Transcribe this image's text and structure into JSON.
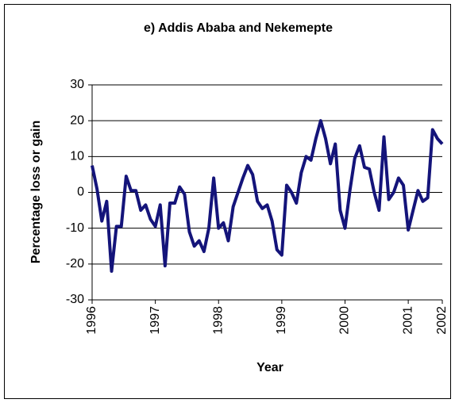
{
  "chart_data": {
    "type": "line",
    "title": "e) Addis Ababa and Nekemepte",
    "x_label": "Year",
    "y_label": "Percentage loss or gain",
    "categories": [
      "1996",
      null,
      null,
      null,
      null,
      null,
      null,
      null,
      null,
      null,
      null,
      null,
      null,
      "1997",
      null,
      null,
      null,
      null,
      null,
      null,
      null,
      null,
      null,
      null,
      null,
      null,
      "1998",
      null,
      null,
      null,
      null,
      null,
      null,
      null,
      null,
      null,
      null,
      null,
      null,
      "1999",
      null,
      null,
      null,
      null,
      null,
      null,
      null,
      null,
      null,
      null,
      null,
      null,
      "2000",
      null,
      null,
      null,
      null,
      null,
      null,
      null,
      null,
      null,
      null,
      null,
      null,
      "2001",
      null,
      null,
      null,
      null,
      null,
      null,
      "2002"
    ],
    "series": [
      {
        "color": "#14147a",
        "values": [
          7.5,
          1,
          -8,
          -2.5,
          -22,
          -9.5,
          -9.5,
          4.5,
          0.5,
          0.5,
          -5,
          -3.5,
          -7.5,
          -9.5,
          -3.5,
          -20.5,
          -3,
          -3,
          1.5,
          -0.5,
          -11,
          -15,
          -13.5,
          -16.5,
          -10,
          4,
          -10,
          -8.5,
          -13.5,
          -4,
          0,
          4,
          7.5,
          5,
          -2.5,
          -4.5,
          -3.5,
          -8,
          -16,
          -17.5,
          2,
          0,
          -3,
          5.5,
          10,
          9,
          15,
          20,
          15,
          8,
          13.5,
          -5,
          -10,
          0.5,
          9.5,
          13,
          7,
          6.5,
          0,
          -5,
          15.5,
          -2,
          0,
          4,
          2,
          -10.5,
          -5,
          0.5,
          -2.5,
          -1.5,
          17.5,
          15,
          13.5
        ]
      }
    ],
    "ylim": [
      -30,
      30
    ],
    "yticks": [
      -30,
      -20,
      -10,
      0,
      10,
      20,
      30
    ],
    "grid": true
  }
}
